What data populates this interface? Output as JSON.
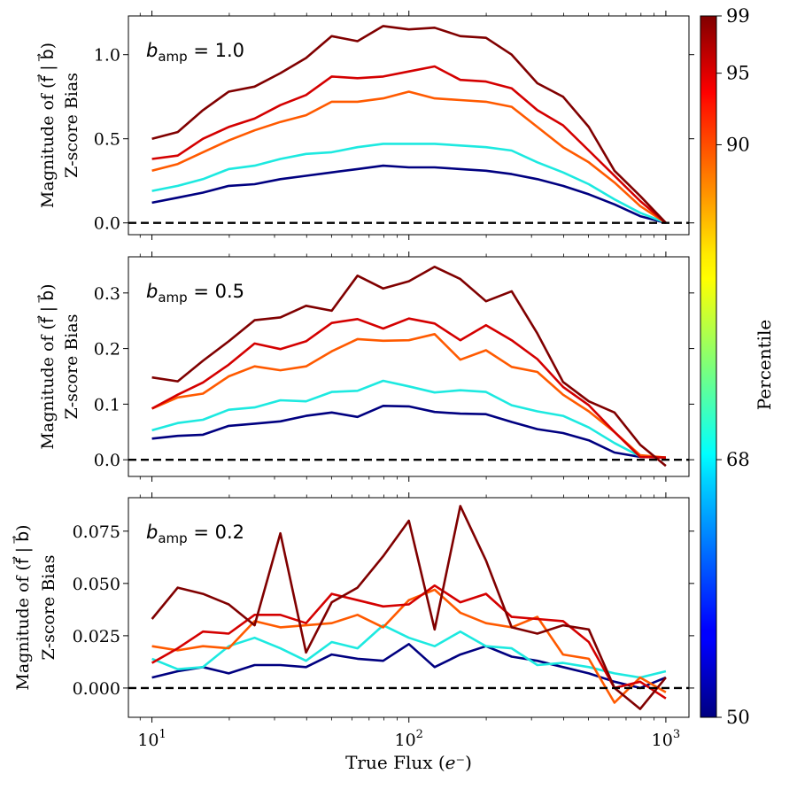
{
  "chart_data": {
    "type": "line",
    "x": [
      10,
      12.6,
      15.8,
      19.9,
      25.1,
      31.6,
      39.8,
      50.1,
      63.1,
      79.4,
      100,
      125.9,
      158.5,
      199.5,
      251.2,
      316.2,
      398.1,
      501.2,
      631,
      794.3,
      1000
    ],
    "x_scale": "log",
    "xlim": [
      8.1,
      1230
    ],
    "xlabel": "True Flux (e⁻)",
    "x_ticks": [
      {
        "value": 10,
        "label": "10",
        "exp": "1"
      },
      {
        "value": 100,
        "label": "10",
        "exp": "2"
      },
      {
        "value": 1000,
        "label": "10",
        "exp": "3"
      }
    ],
    "ylabel_line1": "Magnitude of (f⃗ | b⃗)",
    "ylabel_line2": "Z-score Bias",
    "panels": [
      {
        "annotation": "b",
        "annotation_sub": "amp",
        "annotation_value": " = 1.0",
        "ylim": [
          -0.07,
          1.23
        ],
        "yticks": [
          0.0,
          0.5,
          1.0
        ],
        "ytick_labels": [
          "0.0",
          "0.5",
          "1.0"
        ],
        "series": [
          {
            "name": "50",
            "color": "#000080",
            "values": [
              0.12,
              0.15,
              0.18,
              0.22,
              0.23,
              0.26,
              0.28,
              0.3,
              0.32,
              0.34,
              0.33,
              0.33,
              0.32,
              0.31,
              0.29,
              0.26,
              0.22,
              0.17,
              0.11,
              0.04,
              0.0
            ]
          },
          {
            "name": "68",
            "color": "#1de9e0",
            "values": [
              0.19,
              0.22,
              0.26,
              0.32,
              0.34,
              0.38,
              0.41,
              0.42,
              0.45,
              0.47,
              0.47,
              0.47,
              0.46,
              0.45,
              0.43,
              0.36,
              0.3,
              0.23,
              0.14,
              0.06,
              0.0
            ]
          },
          {
            "name": "90",
            "color": "#ff5a00",
            "values": [
              0.31,
              0.35,
              0.42,
              0.49,
              0.55,
              0.6,
              0.64,
              0.72,
              0.72,
              0.74,
              0.78,
              0.74,
              0.73,
              0.72,
              0.69,
              0.57,
              0.45,
              0.36,
              0.24,
              0.1,
              0.0
            ]
          },
          {
            "name": "95",
            "color": "#d40000",
            "values": [
              0.38,
              0.4,
              0.5,
              0.57,
              0.62,
              0.7,
              0.76,
              0.87,
              0.86,
              0.87,
              0.9,
              0.93,
              0.85,
              0.84,
              0.8,
              0.67,
              0.58,
              0.43,
              0.28,
              0.13,
              0.0
            ]
          },
          {
            "name": "99",
            "color": "#800000",
            "values": [
              0.5,
              0.54,
              0.67,
              0.78,
              0.81,
              0.89,
              0.98,
              1.11,
              1.08,
              1.17,
              1.15,
              1.16,
              1.11,
              1.1,
              1.0,
              0.83,
              0.75,
              0.57,
              0.31,
              0.16,
              0.0
            ]
          }
        ]
      },
      {
        "annotation": "b",
        "annotation_sub": "amp",
        "annotation_value": " = 0.5",
        "ylim": [
          -0.03,
          0.365
        ],
        "yticks": [
          0.0,
          0.1,
          0.2,
          0.3
        ],
        "ytick_labels": [
          "0.0",
          "0.1",
          "0.2",
          "0.3"
        ],
        "series": [
          {
            "name": "50",
            "color": "#000080",
            "values": [
              0.038,
              0.043,
              0.045,
              0.061,
              0.065,
              0.069,
              0.079,
              0.085,
              0.077,
              0.097,
              0.096,
              0.086,
              0.083,
              0.082,
              0.068,
              0.055,
              0.048,
              0.035,
              0.013,
              0.005,
              0.004
            ]
          },
          {
            "name": "68",
            "color": "#1de9e0",
            "values": [
              0.053,
              0.066,
              0.072,
              0.09,
              0.094,
              0.107,
              0.105,
              0.122,
              0.124,
              0.142,
              0.132,
              0.121,
              0.125,
              0.122,
              0.098,
              0.087,
              0.079,
              0.058,
              0.03,
              0.006,
              0.004
            ]
          },
          {
            "name": "90",
            "color": "#ff5a00",
            "values": [
              0.092,
              0.112,
              0.119,
              0.15,
              0.168,
              0.161,
              0.168,
              0.195,
              0.217,
              0.214,
              0.215,
              0.226,
              0.18,
              0.197,
              0.167,
              0.158,
              0.117,
              0.087,
              0.05,
              0.008,
              0.004
            ]
          },
          {
            "name": "95",
            "color": "#d40000",
            "values": [
              0.092,
              0.117,
              0.139,
              0.171,
              0.209,
              0.199,
              0.213,
              0.246,
              0.253,
              0.236,
              0.254,
              0.245,
              0.215,
              0.242,
              0.215,
              0.181,
              0.131,
              0.098,
              0.05,
              0.005,
              0.004
            ]
          },
          {
            "name": "99",
            "color": "#800000",
            "values": [
              0.148,
              0.141,
              0.178,
              0.213,
              0.251,
              0.256,
              0.277,
              0.268,
              0.331,
              0.308,
              0.321,
              0.347,
              0.325,
              0.285,
              0.303,
              0.227,
              0.14,
              0.105,
              0.085,
              0.027,
              -0.011
            ]
          }
        ]
      },
      {
        "annotation": "b",
        "annotation_sub": "amp",
        "annotation_value": " = 0.2",
        "ylim": [
          -0.014,
          0.091
        ],
        "yticks": [
          0.0,
          0.025,
          0.05,
          0.075
        ],
        "ytick_labels": [
          "0.000",
          "0.025",
          "0.050",
          "0.075"
        ],
        "series": [
          {
            "name": "50",
            "color": "#000080",
            "values": [
              0.005,
              0.008,
              0.01,
              0.007,
              0.011,
              0.011,
              0.01,
              0.016,
              0.014,
              0.013,
              0.021,
              0.01,
              0.016,
              0.02,
              0.015,
              0.013,
              0.01,
              0.007,
              0.003,
              0.0,
              0.005
            ]
          },
          {
            "name": "68",
            "color": "#1de9e0",
            "values": [
              0.014,
              0.009,
              0.01,
              0.02,
              0.024,
              0.019,
              0.013,
              0.022,
              0.019,
              0.03,
              0.024,
              0.02,
              0.027,
              0.02,
              0.019,
              0.011,
              0.012,
              0.01,
              0.007,
              0.005,
              0.008
            ]
          },
          {
            "name": "90",
            "color": "#ff5a00",
            "values": [
              0.02,
              0.018,
              0.02,
              0.019,
              0.032,
              0.029,
              0.03,
              0.031,
              0.035,
              0.029,
              0.042,
              0.047,
              0.036,
              0.031,
              0.029,
              0.034,
              0.016,
              0.014,
              -0.007,
              0.005,
              -0.002
            ]
          },
          {
            "name": "95",
            "color": "#d40000",
            "values": [
              0.012,
              0.019,
              0.027,
              0.026,
              0.035,
              0.035,
              0.031,
              0.045,
              0.042,
              0.039,
              0.04,
              0.049,
              0.041,
              0.045,
              0.034,
              0.033,
              0.032,
              0.022,
              0.0,
              0.003,
              -0.005
            ]
          },
          {
            "name": "99",
            "color": "#800000",
            "values": [
              0.033,
              0.048,
              0.045,
              0.04,
              0.03,
              0.074,
              0.017,
              0.041,
              0.048,
              0.063,
              0.08,
              0.028,
              0.087,
              0.061,
              0.029,
              0.026,
              0.03,
              0.028,
              0.0,
              -0.01,
              0.005
            ]
          }
        ]
      }
    ],
    "colorbar": {
      "label": "Percentile",
      "range": [
        50,
        99
      ],
      "ticks": [
        50,
        68,
        90,
        95,
        99
      ],
      "tick_labels": [
        "50",
        "68",
        "90",
        "95",
        "99"
      ],
      "colormap": "jet"
    },
    "reference_line": {
      "y": 0,
      "style": "dashed",
      "color": "#000000"
    }
  }
}
